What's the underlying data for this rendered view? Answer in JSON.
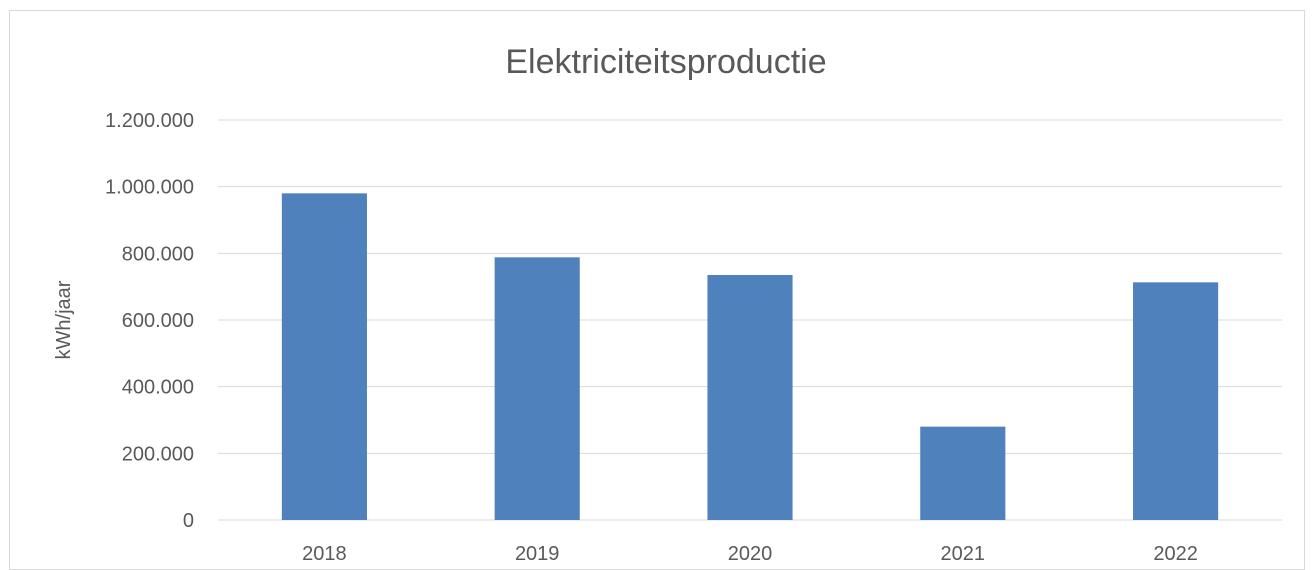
{
  "chart_data": {
    "type": "bar",
    "title": "Elektriciteitsproductie",
    "xlabel": "",
    "ylabel": "kWh/jaar",
    "categories": [
      "2018",
      "2019",
      "2020",
      "2021",
      "2022"
    ],
    "series": [
      {
        "values": [
          980000,
          788000,
          735000,
          280000,
          713000
        ],
        "color": "#4f81bd"
      }
    ],
    "ylim": [
      0,
      1200000
    ],
    "yticks": [
      0,
      200000,
      400000,
      600000,
      800000,
      1000000,
      1200000
    ],
    "ytick_labels": [
      "0",
      "200.000",
      "400.000",
      "600.000",
      "800.000",
      "1.000.000",
      "1.200.000"
    ],
    "grid": true,
    "legend": "none",
    "colors": {
      "bar": "#4f81bd",
      "grid": "#d9d9d9",
      "text": "#595959"
    }
  }
}
